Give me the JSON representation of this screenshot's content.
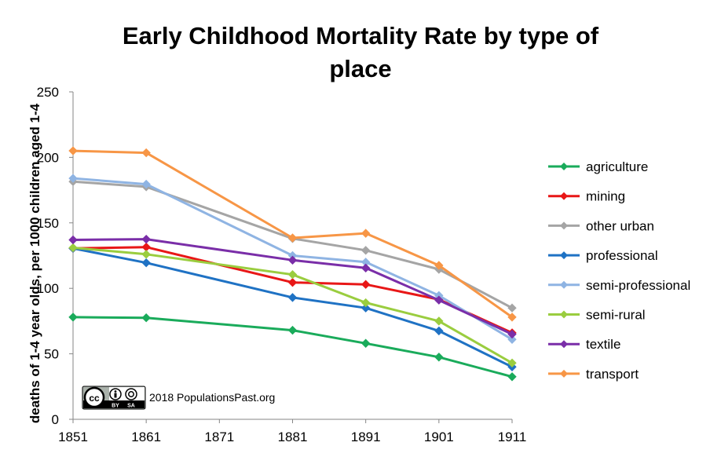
{
  "chart_data": {
    "type": "line",
    "title_lines": [
      "Early Childhood Mortality Rate by type of",
      "place"
    ],
    "xlabel": "",
    "ylabel": "deaths of 1-4 year olds, per 1000 children aged 1-4",
    "x_ticks": [
      1851,
      1861,
      1871,
      1881,
      1891,
      1901,
      1911
    ],
    "xlim": [
      1851,
      1911
    ],
    "ylim": [
      0,
      250
    ],
    "y_ticks": [
      0,
      50,
      100,
      150,
      200,
      250
    ],
    "grid": false,
    "legend_position": "right",
    "x": [
      1851,
      1861,
      1881,
      1891,
      1901,
      1911
    ],
    "series": [
      {
        "name": "agriculture",
        "color": "#1aab5b",
        "values": [
          78,
          77.5,
          68,
          58,
          47.5,
          32.5
        ]
      },
      {
        "name": "mining",
        "color": "#e81717",
        "values": [
          130.5,
          131.5,
          104.5,
          103,
          91.5,
          66
        ]
      },
      {
        "name": "other urban",
        "color": "#a5a5a5",
        "values": [
          181.5,
          177.5,
          138,
          129,
          114.5,
          85
        ]
      },
      {
        "name": "professional",
        "color": "#1f72c4",
        "values": [
          130.5,
          119.5,
          93,
          85,
          67.5,
          40
        ]
      },
      {
        "name": "semi-professional",
        "color": "#8fb4e3",
        "values": [
          184,
          179.5,
          125,
          120,
          94.5,
          61
        ]
      },
      {
        "name": "semi-rural",
        "color": "#9acd3f",
        "values": [
          131,
          126,
          110.5,
          89,
          75,
          43
        ]
      },
      {
        "name": "textile",
        "color": "#7a2ea8",
        "values": [
          137,
          137.5,
          121.5,
          115.5,
          91,
          65
        ]
      },
      {
        "name": "transport",
        "color": "#f79646",
        "values": [
          205,
          203.5,
          138.5,
          142,
          117.5,
          78
        ]
      }
    ]
  },
  "credit": {
    "cc_glyph": "cc",
    "by_text": "BY",
    "sa_text": "SA",
    "text": "2018 PopulationsPast.org"
  }
}
